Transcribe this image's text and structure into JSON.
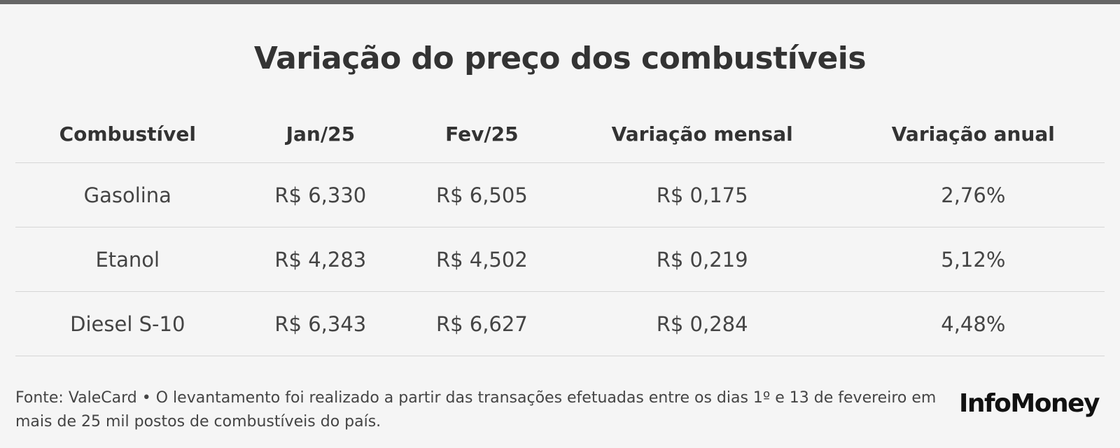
{
  "title": "Variação do preço dos combustíveis",
  "chart_data": {
    "type": "table",
    "title": "Variação do preço dos combustíveis",
    "columns": [
      "Combustível",
      "Jan/25",
      "Fev/25",
      "Variação mensal",
      "Variação anual"
    ],
    "rows": [
      [
        "Gasolina",
        "R$ 6,330",
        "R$ 6,505",
        "R$ 0,175",
        "2,76%"
      ],
      [
        "Etanol",
        "R$ 4,283",
        "R$ 4,502",
        "R$ 0,219",
        "5,12%"
      ],
      [
        "Diesel S-10",
        "R$ 6,343",
        "R$ 6,627",
        "R$ 0,284",
        "4,48%"
      ]
    ]
  },
  "footer": {
    "source": "Fonte: ValeCard • O levantamento foi realizado a partir das transações efetuadas entre os dias 1º e 13 de fevereiro em mais de 25 mil postos de combustíveis do país.",
    "logo": "InfoMoney"
  },
  "colors": {
    "background": "#f5f5f5",
    "topbar": "#666666",
    "text": "#333333",
    "divider": "#d6d6d6"
  }
}
